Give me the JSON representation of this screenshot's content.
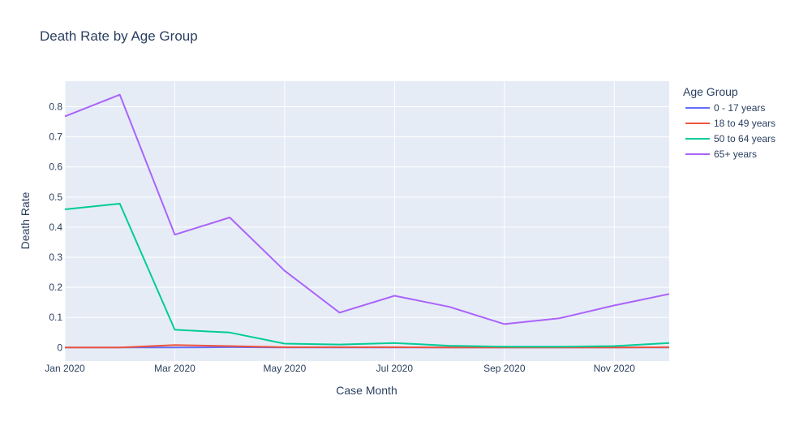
{
  "chart_data": {
    "type": "line",
    "title": "Death Rate by Age Group",
    "xlabel": "Case Month",
    "ylabel": "Death Rate",
    "legend_title": "Age Group",
    "legend_position": "right",
    "grid": true,
    "x_domain": [
      0,
      11
    ],
    "ylim": [
      -0.045,
      0.885
    ],
    "x_ticks": [
      {
        "value": 0,
        "label": "Jan 2020"
      },
      {
        "value": 2,
        "label": "Mar 2020"
      },
      {
        "value": 4,
        "label": "May 2020"
      },
      {
        "value": 6,
        "label": "Jul 2020"
      },
      {
        "value": 8,
        "label": "Sep 2020"
      },
      {
        "value": 10,
        "label": "Nov 2020"
      }
    ],
    "y_ticks": [
      {
        "value": 0,
        "label": "0"
      },
      {
        "value": 0.1,
        "label": "0.1"
      },
      {
        "value": 0.2,
        "label": "0.2"
      },
      {
        "value": 0.3,
        "label": "0.3"
      },
      {
        "value": 0.4,
        "label": "0.4"
      },
      {
        "value": 0.5,
        "label": "0.5"
      },
      {
        "value": 0.6,
        "label": "0.6"
      },
      {
        "value": 0.7,
        "label": "0.7"
      },
      {
        "value": 0.8,
        "label": "0.8"
      }
    ],
    "x": [
      0,
      1,
      2,
      3,
      4,
      5,
      6,
      7,
      8,
      9,
      10,
      11
    ],
    "series": [
      {
        "name": "0 - 17 years",
        "color": "#636efa",
        "values": [
          0.0,
          0.0,
          0.0,
          0.001,
          0.0,
          0.0,
          0.0,
          0.0,
          0.0,
          0.0,
          0.0,
          0.0
        ]
      },
      {
        "name": "18 to 49 years",
        "color": "#ef553b",
        "values": [
          0.0,
          0.0,
          0.008,
          0.005,
          0.001,
          0.001,
          0.001,
          0.0,
          0.0,
          0.0,
          0.0,
          0.001
        ]
      },
      {
        "name": "50 to 64 years",
        "color": "#00cc96",
        "values": [
          0.459,
          0.478,
          0.059,
          0.05,
          0.013,
          0.01,
          0.015,
          0.006,
          0.003,
          0.003,
          0.005,
          0.015
        ]
      },
      {
        "name": "65+ years",
        "color": "#ab63fa",
        "values": [
          0.768,
          0.84,
          0.375,
          0.432,
          0.255,
          0.116,
          0.172,
          0.135,
          0.078,
          0.097,
          0.14,
          0.178
        ]
      }
    ]
  }
}
